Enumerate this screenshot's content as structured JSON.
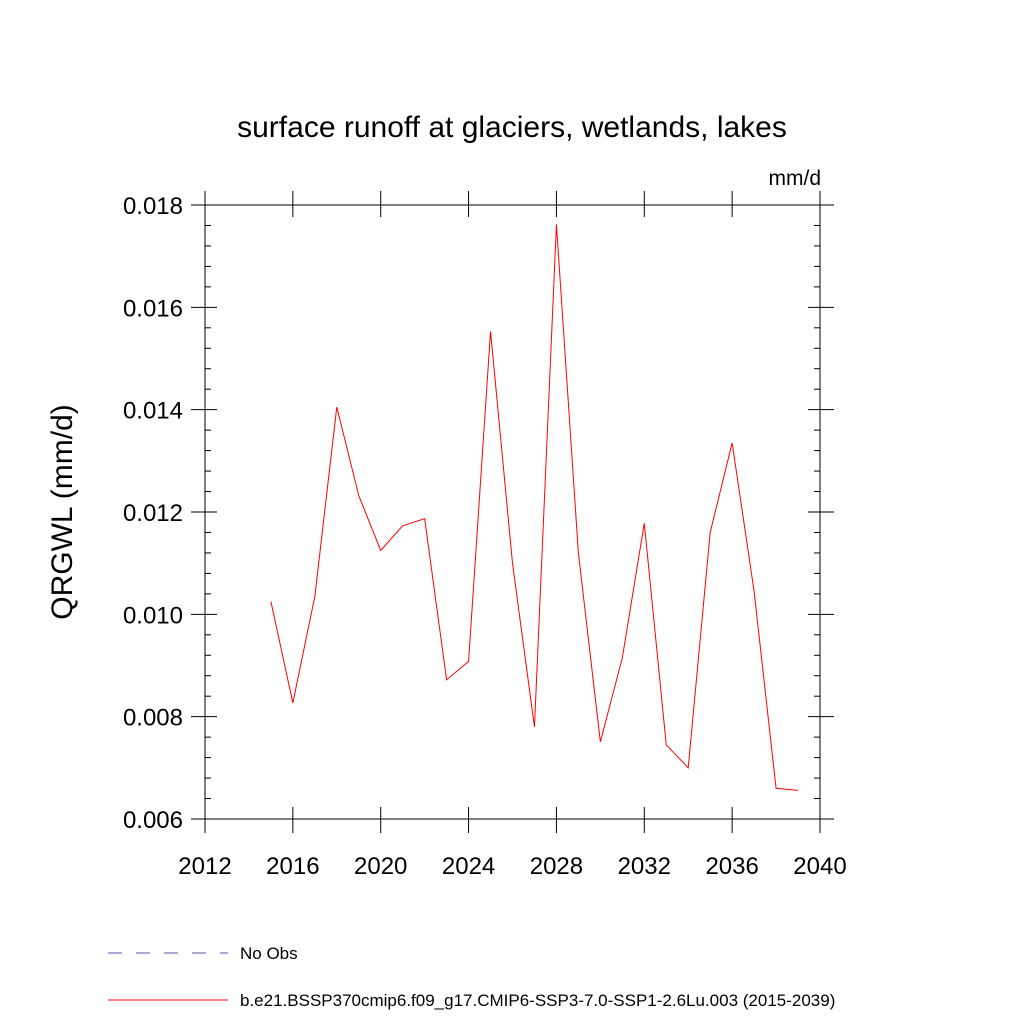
{
  "chart_data": {
    "type": "line",
    "title": "surface runoff at glaciers, wetlands, lakes",
    "units_label": "mm/d",
    "ylabel": "QRGWL  (mm/d)",
    "xlabel": "",
    "xlim": [
      2012,
      2040
    ],
    "ylim": [
      0.006,
      0.018
    ],
    "x_ticks": [
      2012,
      2016,
      2020,
      2024,
      2028,
      2032,
      2036,
      2040
    ],
    "x_tick_labels": [
      "2012",
      "2016",
      "2020",
      "2024",
      "2028",
      "2032",
      "2036",
      "2040"
    ],
    "y_ticks": [
      0.006,
      0.008,
      0.01,
      0.012,
      0.014,
      0.016,
      0.018
    ],
    "y_tick_labels": [
      "0.006",
      "0.008",
      "0.010",
      "0.012",
      "0.014",
      "0.016",
      "0.018"
    ],
    "grid": false,
    "legend_position": "bottom",
    "series": [
      {
        "name": "No Obs",
        "color": "#5a4fa0",
        "dash": "dashed",
        "x": [],
        "y": []
      },
      {
        "name": "b.e21.BSSP370cmip6.f09_g17.CMIP6-SSP3-7.0-SSP1-2.6Lu.003 (2015-2039)",
        "color": "#ff0000",
        "dash": "solid",
        "x": [
          2015,
          2016,
          2017,
          2018,
          2019,
          2020,
          2021,
          2022,
          2023,
          2024,
          2025,
          2026,
          2027,
          2028,
          2029,
          2030,
          2031,
          2032,
          2033,
          2034,
          2035,
          2036,
          2037,
          2038,
          2039
        ],
        "y": [
          0.01025,
          0.00827,
          0.01035,
          0.01405,
          0.01232,
          0.01125,
          0.01173,
          0.01187,
          0.00872,
          0.00908,
          0.01553,
          0.011,
          0.0078,
          0.01762,
          0.0112,
          0.00751,
          0.00915,
          0.01178,
          0.00745,
          0.007,
          0.0116,
          0.01335,
          0.01045,
          0.0066,
          0.00656
        ]
      }
    ]
  }
}
